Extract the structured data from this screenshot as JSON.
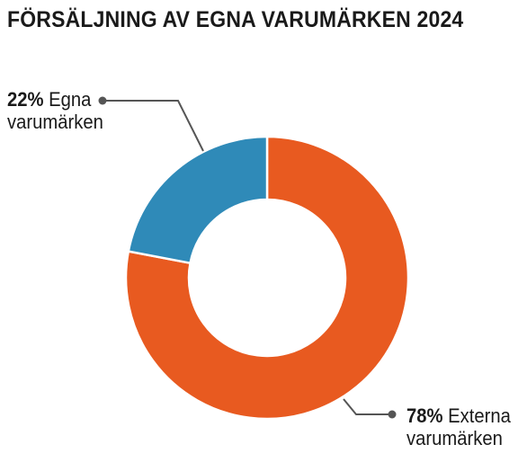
{
  "chart_data": {
    "type": "pie",
    "style": "donut",
    "title": "FÖRSÄLJNING AV EGNA VARUMÄRKEN 2024",
    "slices": [
      {
        "pct_label": "78%",
        "name": "Externa",
        "name2": "varumärken",
        "value": 78,
        "color": "#e85a20"
      },
      {
        "pct_label": "22%",
        "name": "Egna",
        "name2": "varumärken",
        "value": 22,
        "color": "#2f8ab8"
      }
    ],
    "leader_color": "#555555"
  }
}
